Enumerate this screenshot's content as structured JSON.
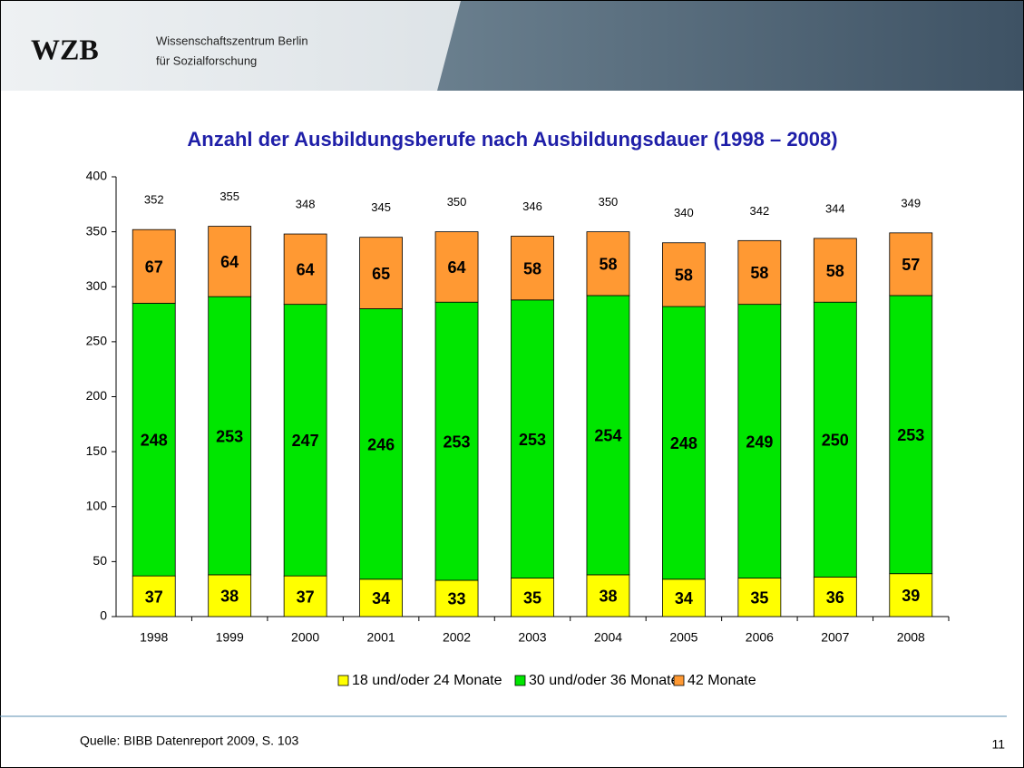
{
  "header": {
    "logo": "WZB",
    "org_line1": "Wissenschaftszentrum Berlin",
    "org_line2": "für Sozialforschung"
  },
  "chart_data": {
    "type": "bar",
    "stacked": true,
    "title": "Anzahl der Ausbildungsberufe nach Ausbildungsdauer (1998 – 2008)",
    "categories": [
      "1998",
      "1999",
      "2000",
      "2001",
      "2002",
      "2003",
      "2004",
      "2005",
      "2006",
      "2007",
      "2008"
    ],
    "series": [
      {
        "name": "18 und/oder 24 Monate",
        "color": "#ffff00",
        "values": [
          37,
          38,
          37,
          34,
          33,
          35,
          38,
          34,
          35,
          36,
          39
        ]
      },
      {
        "name": "30 und/oder 36 Monate",
        "color": "#00e600",
        "values": [
          248,
          253,
          247,
          246,
          253,
          253,
          254,
          248,
          249,
          250,
          253
        ]
      },
      {
        "name": "42 Monate",
        "color": "#ff9933",
        "values": [
          67,
          64,
          64,
          65,
          64,
          58,
          58,
          58,
          58,
          58,
          57
        ]
      }
    ],
    "totals": [
      352,
      355,
      348,
      345,
      350,
      346,
      350,
      340,
      342,
      344,
      349
    ],
    "ylim": [
      0,
      400
    ],
    "yticks": [
      0,
      50,
      100,
      150,
      200,
      250,
      300,
      350,
      400
    ],
    "grid": false,
    "legend": "bottom"
  },
  "footer": {
    "source": "Quelle: BIBB Datenreport 2009, S. 103",
    "page": "11"
  }
}
